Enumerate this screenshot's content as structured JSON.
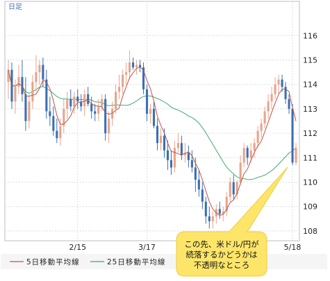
{
  "chart_data": {
    "type": "candlestick",
    "period_label": "日足",
    "ylim": [
      107.6,
      117.4
    ],
    "y_ticks": [
      "108",
      "109",
      "110",
      "111",
      "112",
      "113",
      "114",
      "115",
      "116"
    ],
    "x_ticks": [
      "2/15",
      "3/17",
      "5/18"
    ],
    "x_tick_index": [
      20,
      40,
      82
    ],
    "colors": {
      "up": "#e8a48a",
      "down": "#3a6fb4",
      "ma5": "#c0504d",
      "ma25": "#3daa6b",
      "callout": "#fde56a"
    },
    "series": [
      {
        "name": "5日移動平均線",
        "color": "#c0504d"
      },
      {
        "name": "25日移動平均線",
        "color": "#3daa6b"
      }
    ],
    "ohlc": [
      [
        114.1,
        115.0,
        113.4,
        114.6
      ],
      [
        114.6,
        114.9,
        113.0,
        113.3
      ],
      [
        113.3,
        114.2,
        112.8,
        113.9
      ],
      [
        113.9,
        114.8,
        113.6,
        114.3
      ],
      [
        114.3,
        115.0,
        113.3,
        113.6
      ],
      [
        113.6,
        114.3,
        112.1,
        112.5
      ],
      [
        112.5,
        113.6,
        112.2,
        113.3
      ],
      [
        113.3,
        114.4,
        113.0,
        114.1
      ],
      [
        114.1,
        115.2,
        113.7,
        114.5
      ],
      [
        114.5,
        115.0,
        114.0,
        114.8
      ],
      [
        114.8,
        115.1,
        113.9,
        114.2
      ],
      [
        114.2,
        114.6,
        112.6,
        112.9
      ],
      [
        112.9,
        113.5,
        112.3,
        112.7
      ],
      [
        112.7,
        113.1,
        111.9,
        112.1
      ],
      [
        112.1,
        112.6,
        111.6,
        111.8
      ],
      [
        111.8,
        112.6,
        111.5,
        112.3
      ],
      [
        112.3,
        113.4,
        112.0,
        113.0
      ],
      [
        113.0,
        113.7,
        112.6,
        113.4
      ],
      [
        113.4,
        113.8,
        112.9,
        113.1
      ],
      [
        113.1,
        113.7,
        112.8,
        113.5
      ],
      [
        113.5,
        113.8,
        113.0,
        113.3
      ],
      [
        113.3,
        113.6,
        112.9,
        113.1
      ],
      [
        113.1,
        113.8,
        112.7,
        113.6
      ],
      [
        113.6,
        113.9,
        113.1,
        113.2
      ],
      [
        113.2,
        113.5,
        112.6,
        112.9
      ],
      [
        112.9,
        113.2,
        112.5,
        112.8
      ],
      [
        112.8,
        113.4,
        112.5,
        113.1
      ],
      [
        113.1,
        113.6,
        112.9,
        113.4
      ],
      [
        113.4,
        113.6,
        111.7,
        112.0
      ],
      [
        112.0,
        112.9,
        111.6,
        112.6
      ],
      [
        112.6,
        113.3,
        112.3,
        113.0
      ],
      [
        113.0,
        114.0,
        112.8,
        113.7
      ],
      [
        113.7,
        114.4,
        113.4,
        113.9
      ],
      [
        113.9,
        114.6,
        113.6,
        114.4
      ],
      [
        114.4,
        114.9,
        114.0,
        114.5
      ],
      [
        114.5,
        115.4,
        114.2,
        114.9
      ],
      [
        114.9,
        115.1,
        114.6,
        114.7
      ],
      [
        114.7,
        115.0,
        114.4,
        114.8
      ],
      [
        114.8,
        115.0,
        114.5,
        114.7
      ],
      [
        114.7,
        114.9,
        113.6,
        113.8
      ],
      [
        113.8,
        114.0,
        112.5,
        112.8
      ],
      [
        112.8,
        113.2,
        112.4,
        113.0
      ],
      [
        113.0,
        113.3,
        112.2,
        112.3
      ],
      [
        112.3,
        112.6,
        111.3,
        111.6
      ],
      [
        111.6,
        112.2,
        111.3,
        111.9
      ],
      [
        111.9,
        112.2,
        111.0,
        111.3
      ],
      [
        111.3,
        111.7,
        110.5,
        110.9
      ],
      [
        110.9,
        111.3,
        110.3,
        110.6
      ],
      [
        110.6,
        111.7,
        110.4,
        111.4
      ],
      [
        111.4,
        112.0,
        111.2,
        111.6
      ],
      [
        111.6,
        111.9,
        110.9,
        111.1
      ],
      [
        111.1,
        111.6,
        110.8,
        111.2
      ],
      [
        111.2,
        111.5,
        110.6,
        110.9
      ],
      [
        110.9,
        111.3,
        110.4,
        110.6
      ],
      [
        110.6,
        111.0,
        109.6,
        110.1
      ],
      [
        110.1,
        110.5,
        109.4,
        109.7
      ],
      [
        109.7,
        110.0,
        108.9,
        109.2
      ],
      [
        109.2,
        109.4,
        108.3,
        108.6
      ],
      [
        108.6,
        109.0,
        108.1,
        108.4
      ],
      [
        108.4,
        108.8,
        108.1,
        108.6
      ],
      [
        108.6,
        109.1,
        108.3,
        108.9
      ],
      [
        108.9,
        109.2,
        108.5,
        108.7
      ],
      [
        108.7,
        109.0,
        108.4,
        108.8
      ],
      [
        108.8,
        109.6,
        108.6,
        109.4
      ],
      [
        109.4,
        110.2,
        109.2,
        110.0
      ],
      [
        110.0,
        110.3,
        109.3,
        109.5
      ],
      [
        109.5,
        110.1,
        109.3,
        110.0
      ],
      [
        110.0,
        111.1,
        109.9,
        110.8
      ],
      [
        110.8,
        111.6,
        110.6,
        111.4
      ],
      [
        111.4,
        111.5,
        110.7,
        111.0
      ],
      [
        111.0,
        111.6,
        110.8,
        111.3
      ],
      [
        111.3,
        111.8,
        111.0,
        111.6
      ],
      [
        111.6,
        112.3,
        111.4,
        112.1
      ],
      [
        112.1,
        112.6,
        111.8,
        112.4
      ],
      [
        112.4,
        113.1,
        112.2,
        112.9
      ],
      [
        112.9,
        113.6,
        112.6,
        113.3
      ],
      [
        113.3,
        113.9,
        113.0,
        113.6
      ],
      [
        113.6,
        114.3,
        113.4,
        114.0
      ],
      [
        114.0,
        114.4,
        113.6,
        114.2
      ],
      [
        114.2,
        114.4,
        113.7,
        113.9
      ],
      [
        113.9,
        114.1,
        113.2,
        113.4
      ],
      [
        113.4,
        113.6,
        112.8,
        113.0
      ],
      [
        113.0,
        113.2,
        110.7,
        110.8
      ],
      [
        110.8,
        111.6,
        110.7,
        111.4
      ]
    ],
    "annotation": {
      "lines": [
        "この先、米ドル/円が",
        "続落するかどうかは",
        "不透明なところ"
      ]
    }
  }
}
